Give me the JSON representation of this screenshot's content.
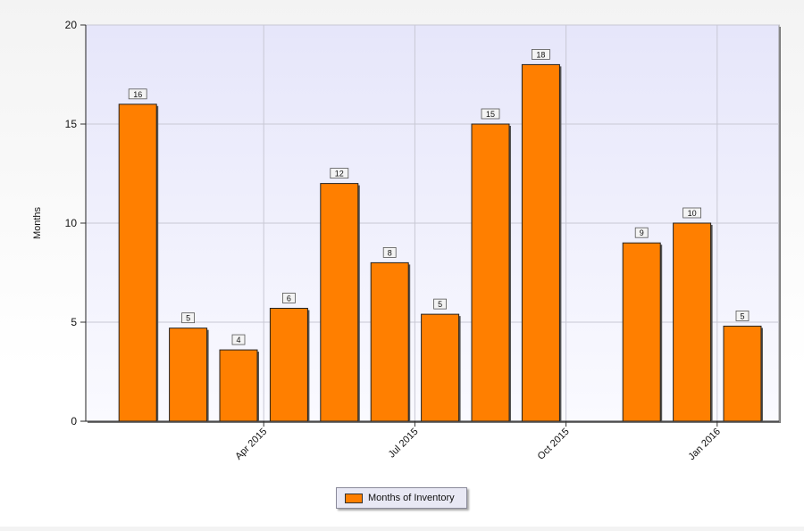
{
  "chart_data": {
    "type": "bar",
    "title": "",
    "xlabel": "",
    "ylabel": "Months",
    "ylim": [
      0,
      20
    ],
    "yticks": [
      0,
      5,
      10,
      15,
      20
    ],
    "grid": true,
    "legend_position": "bottom",
    "x_tick_labels": [
      "Apr 2015",
      "Jul 2015",
      "Oct 2015",
      "Jan 2016"
    ],
    "x_tick_positions": [
      3.5,
      6.5,
      9.5,
      12.5
    ],
    "bar_color": "#ff7f00",
    "plot_background": "#e9e9f9",
    "series": [
      {
        "name": "Months of Inventory",
        "x": [
          1,
          2,
          3,
          4,
          5,
          6,
          7,
          8,
          9,
          11,
          12,
          13
        ],
        "values": [
          16,
          4.7,
          3.6,
          5.7,
          12,
          8,
          5.4,
          15,
          18,
          9,
          10,
          4.8
        ],
        "labels": [
          "16",
          "5",
          "4",
          "6",
          "12",
          "8",
          "5",
          "15",
          "18",
          "9",
          "10",
          "5"
        ]
      }
    ]
  },
  "legend": {
    "label": "Months of Inventory"
  }
}
